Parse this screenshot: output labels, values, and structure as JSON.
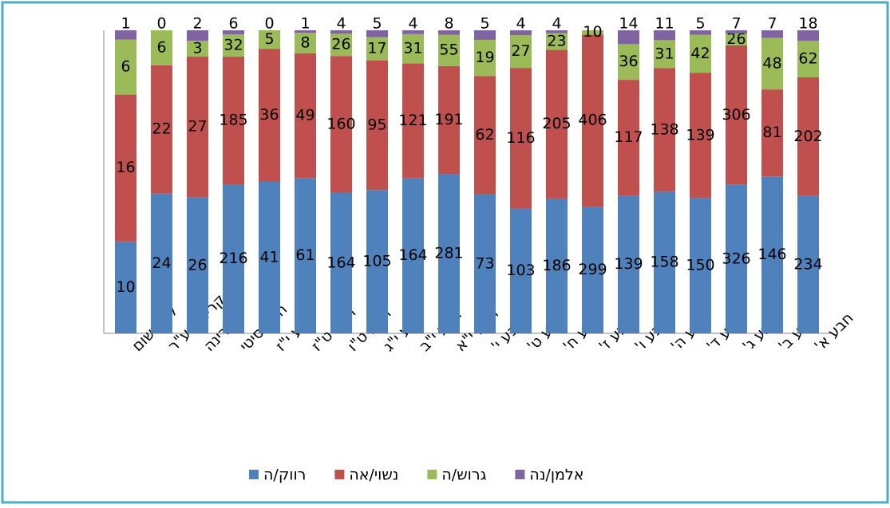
{
  "chart_data": {
    "type": "stacked100",
    "categories": [
      "לא רשום",
      "קריה-מע\"ר",
      "מרינה",
      "חבע סיטי",
      "חבע י\"ז",
      "חבע ט\"ז",
      "חבע ט\"ו",
      "חבע י\"ג",
      "חבע י\"ב",
      "חבע י\"א",
      "חבע י'",
      "חבע ט'",
      "חבע ח'",
      "חבע ז'",
      "חבע ו'",
      "חבע ה'",
      "חבע ד'",
      "חבע ג'",
      "חבע ב'",
      "חבע א'"
    ],
    "series": [
      {
        "name": "רווק/ה",
        "color": "#4f81bd",
        "values": [
          10,
          24,
          26,
          216,
          41,
          61,
          164,
          105,
          164,
          281,
          73,
          103,
          186,
          299,
          139,
          158,
          150,
          326,
          146,
          234
        ]
      },
      {
        "name": "נשוי/אה",
        "color": "#c0504d",
        "values": [
          16,
          22,
          27,
          185,
          36,
          49,
          160,
          95,
          121,
          191,
          62,
          116,
          205,
          406,
          117,
          138,
          139,
          306,
          81,
          202
        ]
      },
      {
        "name": "גרוש/ה",
        "color": "#9bbb59",
        "values": [
          6,
          6,
          3,
          32,
          5,
          8,
          26,
          17,
          31,
          55,
          19,
          27,
          23,
          10,
          36,
          31,
          42,
          26,
          48,
          62
        ]
      },
      {
        "name": "אלמן/נה",
        "color": "#8064a2",
        "values": [
          1,
          0,
          2,
          6,
          0,
          1,
          4,
          5,
          4,
          8,
          5,
          4,
          4,
          null,
          14,
          11,
          5,
          7,
          7,
          18
        ]
      }
    ]
  }
}
